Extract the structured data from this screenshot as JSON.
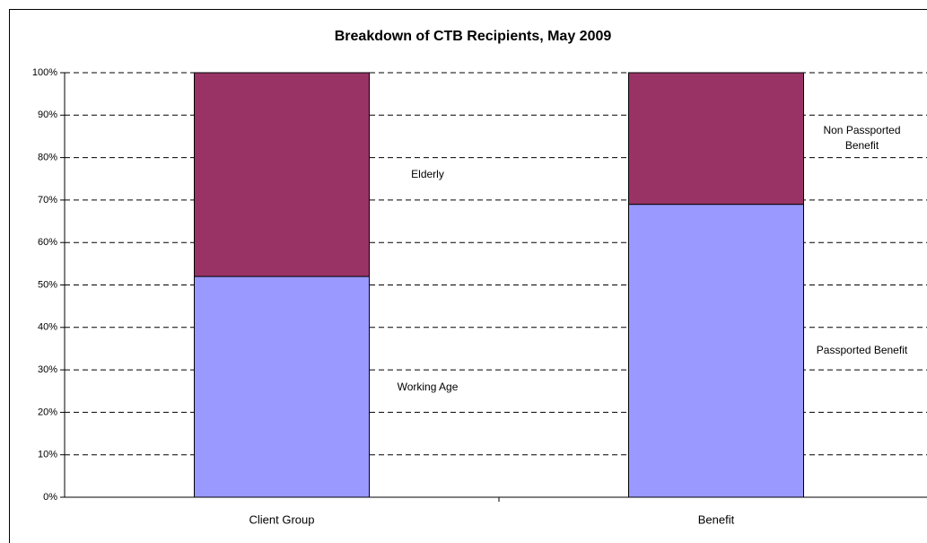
{
  "chart_data": {
    "type": "stacked_bar",
    "title": "Breakdown of CTB Recipients, May 2009",
    "categories": [
      "Client Group",
      "Benefit"
    ],
    "segments": [
      [
        {
          "name": "Working Age",
          "value": 52,
          "color": "#9999ff"
        },
        {
          "name": "Elderly",
          "value": 48,
          "color": "#993366"
        }
      ],
      [
        {
          "name": "Passported Benefit",
          "value": 69,
          "color": "#9999ff"
        },
        {
          "name": "Non Passported Benefit",
          "value": 31,
          "color": "#993366"
        }
      ]
    ],
    "ylim": [
      0,
      100
    ],
    "yticks": [
      {
        "value": 0,
        "label": "0%"
      },
      {
        "value": 10,
        "label": "10%"
      },
      {
        "value": 20,
        "label": "20%"
      },
      {
        "value": 30,
        "label": "30%"
      },
      {
        "value": 40,
        "label": "40%"
      },
      {
        "value": 50,
        "label": "50%"
      },
      {
        "value": 60,
        "label": "60%"
      },
      {
        "value": 70,
        "label": "70%"
      },
      {
        "value": 80,
        "label": "80%"
      },
      {
        "value": 90,
        "label": "90%"
      },
      {
        "value": 100,
        "label": "100%"
      }
    ],
    "grid": true
  }
}
